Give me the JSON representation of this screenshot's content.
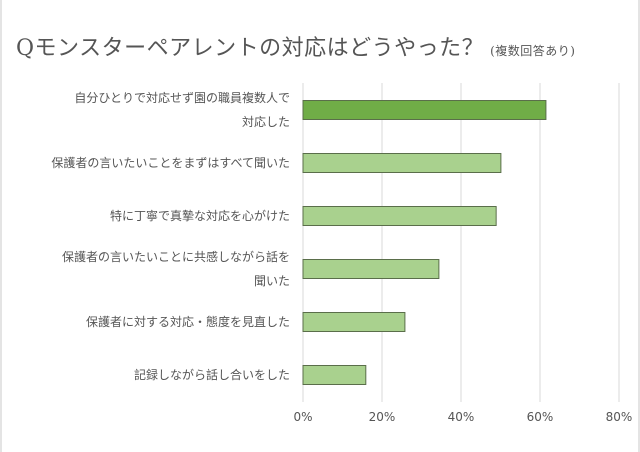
{
  "chart_data": {
    "type": "bar",
    "orientation": "horizontal",
    "title": "Qモンスターペアレントの対応はどうやった？",
    "subtitle": "(複数回答あり)",
    "categories": [
      "自分ひとりで対応せず園の職員複数人で\n対応した",
      "保護者の言いたいことをまずはすべて聞いた",
      "特に丁寧で真摯な対応を心がけた",
      "保護者の言いたいことに共感しながら話を\n聞いた",
      "保護者に対する対応・態度を見直した",
      "記録しながら話し合いをした"
    ],
    "values": [
      61.5,
      50.1,
      48.9,
      34.4,
      25.8,
      15.9
    ],
    "unit": "%",
    "xlim": [
      0,
      80
    ],
    "xticks": [
      "0%",
      "20%",
      "40%",
      "60%",
      "80%"
    ],
    "grid": true,
    "colors": {
      "highlight": "#70ad47",
      "bar": "#a9d18e",
      "border": "#5a6e4a",
      "grid": "#d9d9d9"
    }
  }
}
